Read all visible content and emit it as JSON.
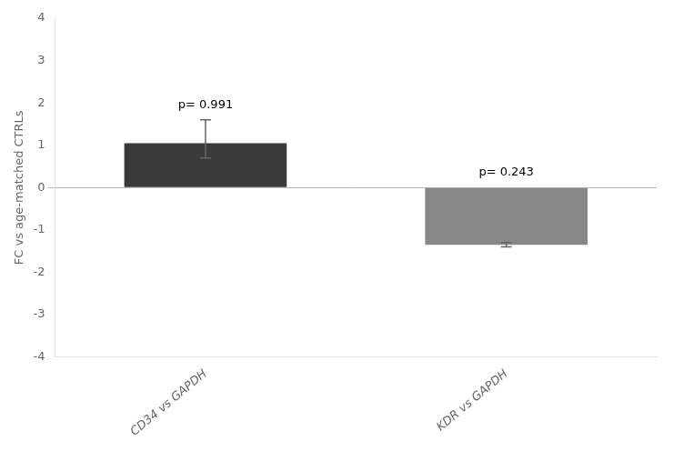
{
  "chart_data": {
    "type": "bar",
    "categories": [
      "CD34 vs GAPDH",
      "KDR vs GAPDH"
    ],
    "values": [
      1.05,
      -1.35
    ],
    "colors": [
      "#3a3a3a",
      "#888888"
    ],
    "error_up": [
      0.55,
      0.05
    ],
    "error_down": [
      0.35,
      0.05
    ],
    "annotations": [
      "p= 0.991",
      "p= 0.243"
    ],
    "ylabel": "FC vs age-matched CTRLs",
    "ylim": [
      -4,
      4
    ],
    "yticks": [
      -4,
      -3,
      -2,
      -1,
      0,
      1,
      2,
      3,
      4
    ],
    "grid": false,
    "legend": false
  }
}
